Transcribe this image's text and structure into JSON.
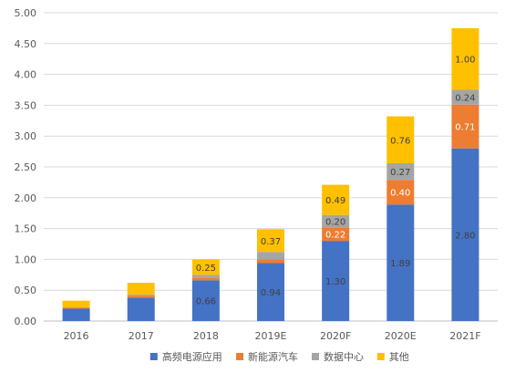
{
  "chart_data": {
    "type": "bar",
    "stacked": true,
    "categories": [
      "2016",
      "2017",
      "2018",
      "2019E",
      "2020F",
      "2020E",
      "2021F"
    ],
    "ylim": [
      0,
      5
    ],
    "yticks": [
      "0.00",
      "0.50",
      "1.00",
      "1.50",
      "2.00",
      "2.50",
      "3.00",
      "3.50",
      "4.00",
      "4.50",
      "5.00"
    ],
    "grid": true,
    "legend_position": "bottom",
    "series": [
      {
        "name": "高频电源应用",
        "color": "#4472C4",
        "values": [
          0.2,
          0.38,
          0.66,
          0.94,
          1.3,
          1.89,
          2.8
        ],
        "labels": [
          "",
          "",
          "0.66",
          "0.94",
          "1.30",
          "1.89",
          "2.80"
        ],
        "label_color": "#404040"
      },
      {
        "name": "新能源汽车",
        "color": "#ED7D31",
        "values": [
          0.02,
          0.03,
          0.04,
          0.06,
          0.22,
          0.4,
          0.71
        ],
        "labels": [
          "",
          "",
          "",
          "",
          "0.22",
          "0.40",
          "0.71"
        ],
        "label_color": "#ffffff"
      },
      {
        "name": "数据中心",
        "color": "#A5A5A5",
        "values": [
          0.0,
          0.02,
          0.05,
          0.12,
          0.2,
          0.27,
          0.24
        ],
        "labels": [
          "",
          "",
          "",
          "",
          "0.20",
          "0.27",
          "0.24"
        ],
        "label_color": "#404040"
      },
      {
        "name": "其他",
        "color": "#FFC000",
        "values": [
          0.11,
          0.19,
          0.25,
          0.37,
          0.49,
          0.76,
          1.0
        ],
        "labels": [
          "",
          "",
          "0.25",
          "0.37",
          "0.49",
          "0.76",
          "1.00"
        ],
        "label_color": "#404040"
      }
    ]
  }
}
